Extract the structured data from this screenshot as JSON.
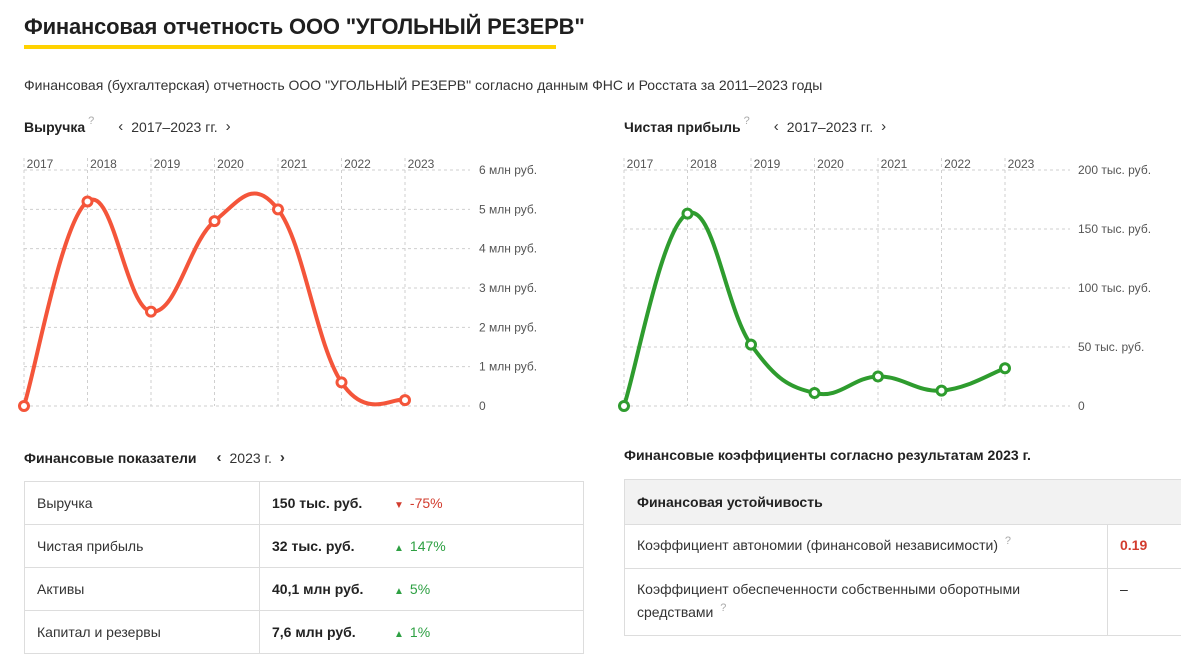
{
  "page": {
    "title": "Финансовая отчетность ООО \"УГОЛЬНЫЙ РЕЗЕРВ\"",
    "subtitle": "Финансовая (бухгалтерская) отчетность ООО \"УГОЛЬНЫЙ РЕЗЕРВ\" согласно данным ФНС и Росстата за 2011–2023 годы"
  },
  "revenue_header": {
    "title": "Выручка",
    "help": "?",
    "prev": "‹",
    "period": "2017–2023 гг.",
    "next": "›"
  },
  "profit_header": {
    "title": "Чистая прибыль",
    "help": "?",
    "prev": "‹",
    "period": "2017–2023 гг.",
    "next": "›"
  },
  "chart_data": [
    {
      "type": "line",
      "title": "Выручка",
      "x": [
        "2017",
        "2018",
        "2019",
        "2020",
        "2021",
        "2022",
        "2023"
      ],
      "values": [
        0,
        5.2,
        2.4,
        4.7,
        5.0,
        0.6,
        0.15
      ],
      "unit": "млн руб.",
      "ylim": [
        0,
        6
      ],
      "yticks": [
        "0",
        "1 млн руб.",
        "2 млн руб.",
        "3 млн руб.",
        "4 млн руб.",
        "5 млн руб.",
        "6 млн руб."
      ],
      "color": "#f4553a",
      "grid": true
    },
    {
      "type": "line",
      "title": "Чистая прибыль",
      "x": [
        "2017",
        "2018",
        "2019",
        "2020",
        "2021",
        "2022",
        "2023"
      ],
      "values": [
        0,
        163,
        52,
        11,
        25,
        13,
        32
      ],
      "unit": "тыс. руб.",
      "ylim": [
        0,
        200
      ],
      "yticks": [
        "0",
        "50 тыс. руб.",
        "100 тыс. руб.",
        "150 тыс. руб.",
        "200 тыс. руб."
      ],
      "color": "#2e9c2e",
      "grid": true
    }
  ],
  "indicators": {
    "title": "Финансовые показатели",
    "prev": "‹",
    "period": "2023 г.",
    "next": "›",
    "rows": [
      {
        "label": "Выручка",
        "value": "150 тыс. руб.",
        "change": "-75%",
        "direction": "down"
      },
      {
        "label": "Чистая прибыль",
        "value": "32 тыс. руб.",
        "change": "147%",
        "direction": "up"
      },
      {
        "label": "Активы",
        "value": "40,1 млн руб.",
        "change": "5%",
        "direction": "up"
      },
      {
        "label": "Капитал и резервы",
        "value": "7,6 млн руб.",
        "change": "1%",
        "direction": "up"
      }
    ]
  },
  "coefficients": {
    "title": "Финансовые коэффициенты согласно результатам 2023 г.",
    "section": "Финансовая устойчивость",
    "rows": [
      {
        "label": "Коэффициент автономии (финансовой независимости)",
        "help": "?",
        "value": "0.19",
        "status": "red"
      },
      {
        "label": "Коэффициент обеспеченности собственными оборотными средствами",
        "help": "?",
        "value": "–",
        "status": "neutral"
      }
    ]
  },
  "colors": {
    "accent": "#ffd200",
    "down": "#d23c2e",
    "up": "#2ea043"
  }
}
